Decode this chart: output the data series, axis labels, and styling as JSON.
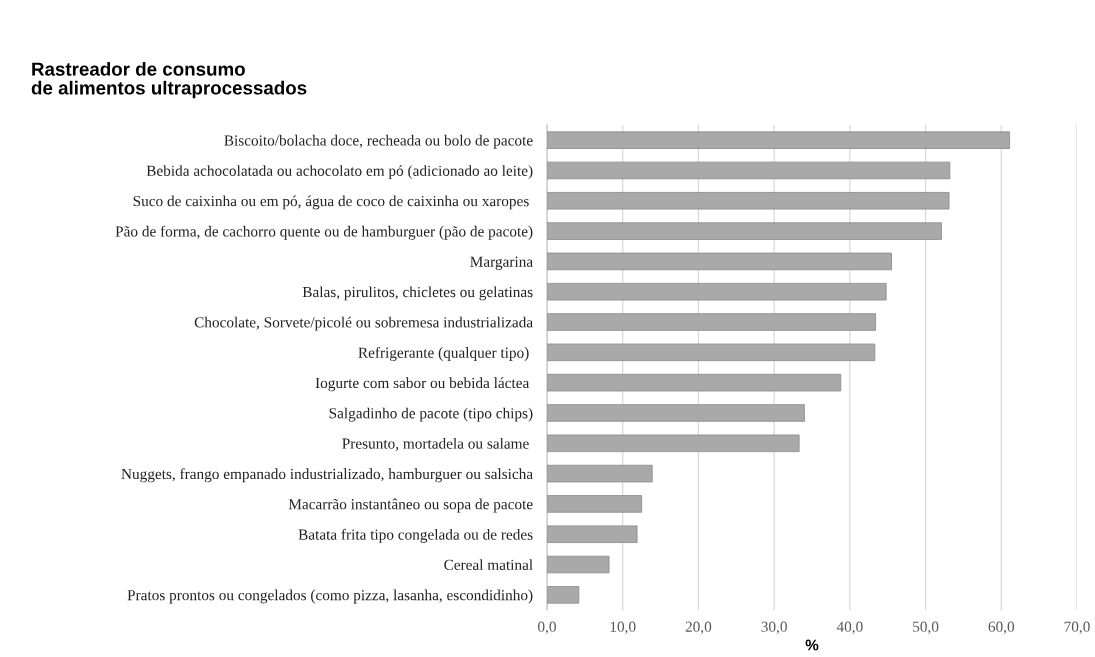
{
  "chart_data": {
    "type": "bar",
    "orientation": "horizontal",
    "title": "Rastreador de consumo\nde alimentos ultraprocessados",
    "xlabel": "%",
    "categories": [
      "Biscoito/bolacha doce, recheada ou bolo de pacote",
      "Bebida achocolatada ou achocolato em pó (adicionado ao leite)",
      "Suco de caixinha ou em pó, água de coco de caixinha ou xaropes ",
      "Pão de forma, de cachorro quente ou de hamburguer (pão de pacote)",
      "Margarina",
      "Balas, pirulitos, chicletes ou gelatinas",
      "Chocolate, Sorvete/picolé ou sobremesa industrializada",
      "Refrigerante (qualquer tipo) ",
      "Iogurte com sabor ou bebida láctea ",
      "Salgadinho de pacote (tipo chips)",
      "Presunto, mortadela ou salame ",
      "Nuggets, frango empanado industrializado, hamburguer ou salsicha",
      "Macarrão instantâneo ou sopa de pacote",
      "Batata frita tipo congelada ou de redes",
      "Cereal matinal",
      "Pratos prontos ou congelados (como pizza, lasanha, escondidinho)"
    ],
    "values": [
      61.1,
      53.2,
      53.1,
      52.1,
      45.5,
      44.8,
      43.4,
      43.3,
      38.8,
      34.0,
      33.3,
      13.9,
      12.5,
      11.9,
      8.2,
      4.2
    ],
    "color": "#a9a9a9",
    "xlim": [
      0,
      70
    ],
    "xticks": [
      {
        "value": 0,
        "label": "0,0"
      },
      {
        "value": 10,
        "label": "10,0"
      },
      {
        "value": 20,
        "label": "20,0"
      },
      {
        "value": 30,
        "label": "30,0"
      },
      {
        "value": 40,
        "label": "40,0"
      },
      {
        "value": 50,
        "label": "50,0"
      },
      {
        "value": 60,
        "label": "60,0"
      },
      {
        "value": 70,
        "label": "70,0"
      }
    ],
    "grid": "x"
  }
}
